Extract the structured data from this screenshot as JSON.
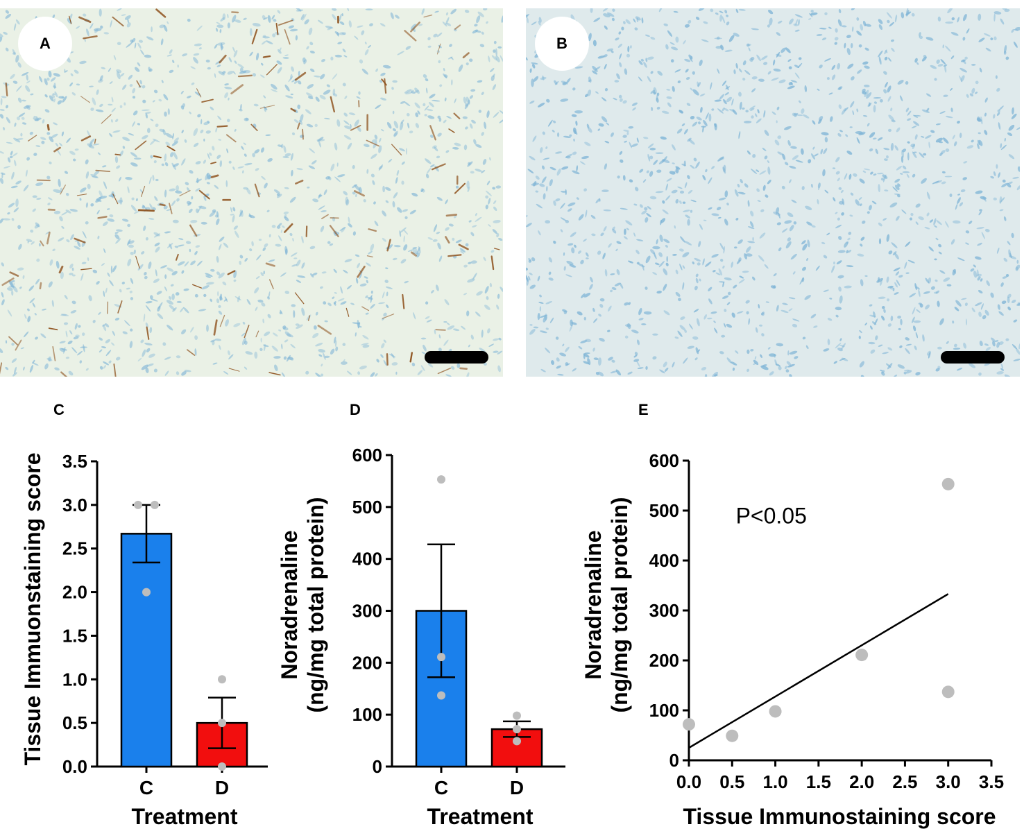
{
  "panels": {
    "a": {
      "letter": "A"
    },
    "b": {
      "letter": "B"
    },
    "c": {
      "letter": "C"
    },
    "d": {
      "letter": "D"
    },
    "e": {
      "letter": "E"
    }
  },
  "colors": {
    "control": "#1a80ec",
    "treated": "#f20e0e",
    "points": "#bdbdbd",
    "tissue_bg": "#eaf1e6",
    "brown_stain": "#8a4a14",
    "blue_nuclei": "#7eb4d6"
  },
  "chart_data": [
    {
      "id": "C",
      "type": "bar",
      "categories": [
        "C",
        "D"
      ],
      "values": [
        2.67,
        0.5
      ],
      "error": [
        0.33,
        0.29
      ],
      "points": [
        [
          3.0,
          3.0,
          2.0
        ],
        [
          1.0,
          0.5,
          0.0
        ]
      ],
      "xlabel": "Treatment",
      "ylabel": "Tissue Immuonstaining score",
      "ylim": [
        0,
        3.5
      ],
      "yticks": [
        "0.0",
        "0.5",
        "1.0",
        "1.5",
        "2.0",
        "2.5",
        "3.0",
        "3.5"
      ],
      "ytick_values": [
        0,
        0.5,
        1.0,
        1.5,
        2.0,
        2.5,
        3.0,
        3.5
      ]
    },
    {
      "id": "D",
      "type": "bar",
      "categories": [
        "C",
        "D"
      ],
      "values": [
        300,
        72
      ],
      "error": [
        128,
        15
      ],
      "points": [
        [
          553,
          211,
          137
        ],
        [
          98,
          72,
          49
        ]
      ],
      "xlabel": "Treatment",
      "ylabel": "Noradrenaline",
      "ylabel2": "(ng/mg total protein)",
      "ylim": [
        0,
        600
      ],
      "yticks": [
        "0",
        "100",
        "200",
        "300",
        "400",
        "500",
        "600"
      ],
      "ytick_values": [
        0,
        100,
        200,
        300,
        400,
        500,
        600
      ]
    },
    {
      "id": "E",
      "type": "scatter",
      "x": [
        0.0,
        0.5,
        1.0,
        2.0,
        3.0,
        3.0
      ],
      "y": [
        72,
        49,
        98,
        211,
        553,
        137
      ],
      "fit_line": {
        "x": [
          0.0,
          3.0
        ],
        "y": [
          25,
          333
        ]
      },
      "annotation": "P<0.05",
      "annotation_at": {
        "x": 1.0,
        "y": 530
      },
      "xlabel": "Tissue Immunostaining score",
      "ylabel": "Noradrenaline",
      "ylabel2": "(ng/mg total protein)",
      "xlim": [
        0,
        3.5
      ],
      "ylim": [
        0,
        600
      ],
      "xticks": [
        "0.0",
        "0.5",
        "1.0",
        "1.5",
        "2.0",
        "2.5",
        "3.0",
        "3.5"
      ],
      "xtick_values": [
        0,
        0.5,
        1.0,
        1.5,
        2.0,
        2.5,
        3.0,
        3.5
      ],
      "yticks": [
        "0",
        "100",
        "200",
        "300",
        "400",
        "500",
        "600"
      ],
      "ytick_values": [
        0,
        100,
        200,
        300,
        400,
        500,
        600
      ]
    }
  ]
}
